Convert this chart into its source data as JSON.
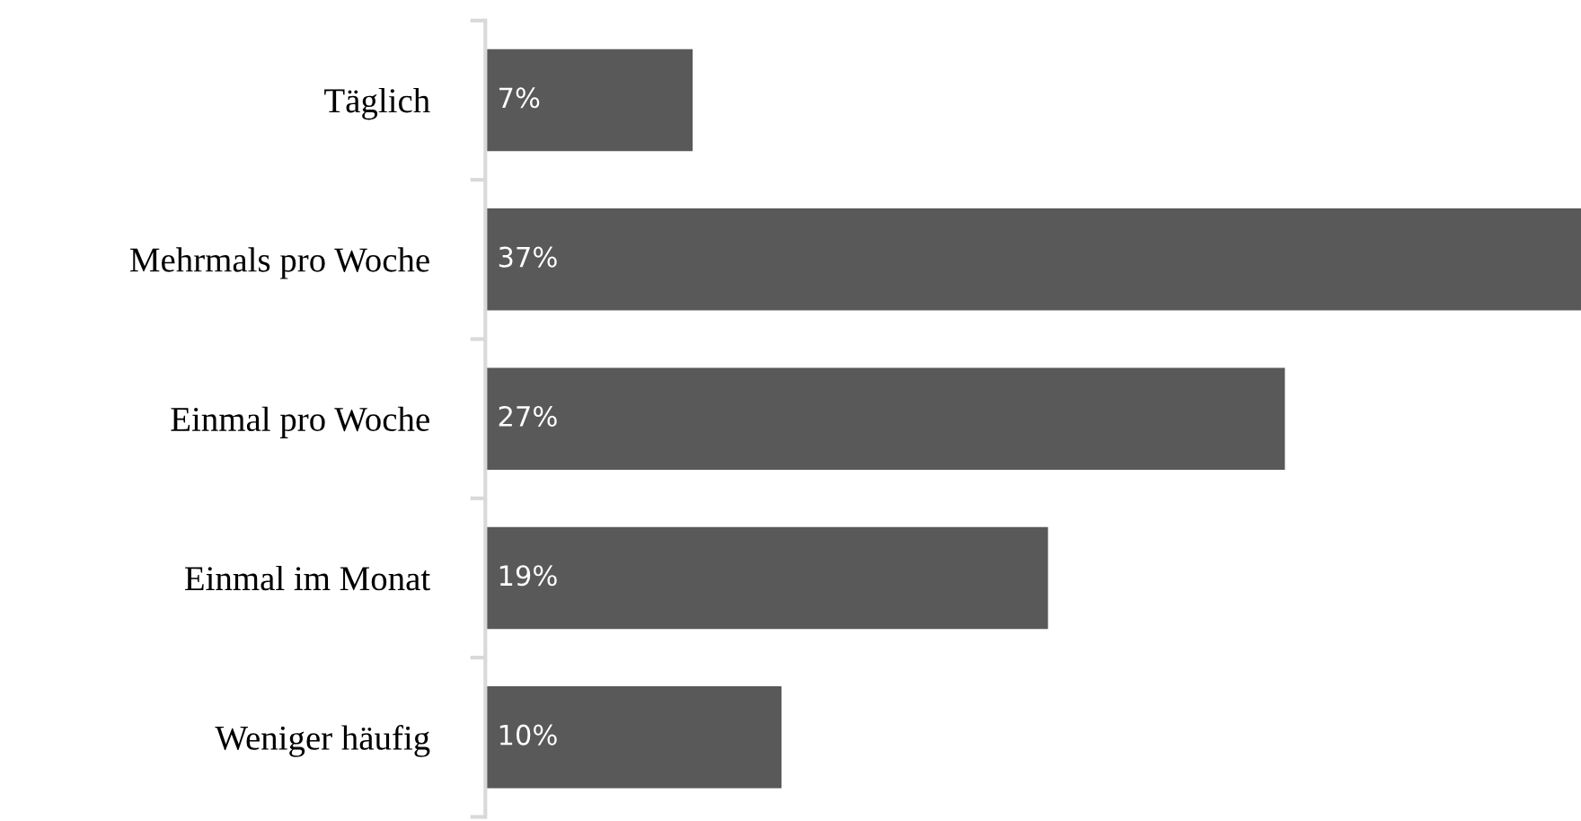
{
  "chart_data": {
    "type": "bar",
    "orientation": "horizontal",
    "categories": [
      "Täglich",
      "Mehrmals pro Woche",
      "Einmal pro Woche",
      "Einmal im Monat",
      "Weniger häufig"
    ],
    "values": [
      7,
      37,
      27,
      19,
      10
    ],
    "value_labels": [
      "7%",
      "37%",
      "27%",
      "19%",
      "10%"
    ],
    "color": "#595959",
    "grid": false,
    "legend": false,
    "tick_labels": "y"
  }
}
